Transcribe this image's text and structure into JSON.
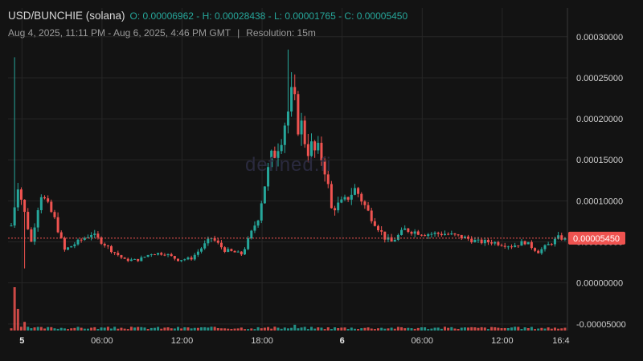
{
  "header": {
    "symbol": "USD/BUNCHIE (solana)",
    "ohlc_text": "O: 0.00006962 - H: 0.00028438 - L: 0.00001765 - C: 0.00005450",
    "range": "Aug 4, 2025, 11:11 PM - Aug 6, 2025, 4:46 PM GMT",
    "separator": "|",
    "resolution": "Resolution: 15m"
  },
  "watermark": "defined.fi",
  "colors": {
    "background": "#131313",
    "up": "#26a69a",
    "down": "#ef5350",
    "grid": "#262626",
    "price_tag": "#ef5350"
  },
  "chart_data": {
    "type": "candlestick",
    "open": 6.962e-05,
    "high": 0.00028438,
    "low": 1.765e-05,
    "close": 5.45e-05,
    "current_price_label": "0.00005450",
    "y_ticks": [
      "0.00030000",
      "0.00025000",
      "0.00020000",
      "0.00015000",
      "0.00010000",
      "0.00005000",
      "0.00000000",
      "-0.00005000"
    ],
    "y_tick_values": [
      0.0003,
      0.00025,
      0.0002,
      0.00015,
      0.0001,
      5e-05,
      0,
      -5e-05
    ],
    "ylim": [
      -5.8e-05,
      0.000335
    ],
    "x_ticks": [
      {
        "label": "5",
        "bold": true
      },
      {
        "label": "06:00",
        "bold": false
      },
      {
        "label": "12:00",
        "bold": false
      },
      {
        "label": "18:00",
        "bold": false
      },
      {
        "label": "6",
        "bold": true
      },
      {
        "label": "06:00",
        "bold": false
      },
      {
        "label": "12:00",
        "bold": false
      },
      {
        "label": "16:4",
        "bold": false
      }
    ],
    "grid": true,
    "resolution_minutes": 15,
    "key_points": [
      [
        0.0,
        7e-05
      ],
      [
        0.5,
        0.00012
      ],
      [
        1.5,
        5e-05
      ],
      [
        2.2,
        0.00011
      ],
      [
        3.2,
        8e-05
      ],
      [
        4.0,
        4e-05
      ],
      [
        5.0,
        5e-05
      ],
      [
        6.0,
        6e-05
      ],
      [
        6.8,
        5e-05
      ],
      [
        7.5,
        4e-05
      ],
      [
        8.5,
        2.8e-05
      ],
      [
        9.5,
        2.8e-05
      ],
      [
        10.5,
        3.6e-05
      ],
      [
        11.5,
        3.6e-05
      ],
      [
        12.5,
        2.8e-05
      ],
      [
        13.5,
        3e-05
      ],
      [
        15.0,
        5.5e-05
      ],
      [
        16.0,
        4e-05
      ],
      [
        17.3,
        3.5e-05
      ],
      [
        18.5,
        8e-05
      ],
      [
        19.0,
        0.00012
      ],
      [
        19.8,
        0.000165
      ],
      [
        20.3,
        0.00019
      ],
      [
        21.0,
        0.00022
      ],
      [
        21.6,
        0.000195
      ],
      [
        22.3,
        0.000165
      ],
      [
        23.0,
        0.000155
      ],
      [
        23.4,
        0.000155
      ],
      [
        24.0,
        9e-05
      ],
      [
        25.0,
        0.0001
      ],
      [
        25.8,
        0.000115
      ],
      [
        26.8,
        8.5e-05
      ],
      [
        28.0,
        5.5e-05
      ],
      [
        28.5,
        5e-05
      ],
      [
        29.5,
        6.5e-05
      ],
      [
        31.0,
        6e-05
      ],
      [
        32.5,
        6e-05
      ],
      [
        34.0,
        5.5e-05
      ],
      [
        35.0,
        5e-05
      ],
      [
        36.0,
        5e-05
      ],
      [
        37.5,
        4.5e-05
      ],
      [
        38.5,
        5e-05
      ],
      [
        39.5,
        3.8e-05
      ],
      [
        41.0,
        5.5e-05
      ],
      [
        41.7,
        5.45e-05
      ]
    ],
    "volume_spikes": [
      [
        0.15,
        0.9
      ],
      [
        0.4,
        0.45
      ],
      [
        1.0,
        0.18
      ],
      [
        21.2,
        0.12
      ]
    ]
  }
}
